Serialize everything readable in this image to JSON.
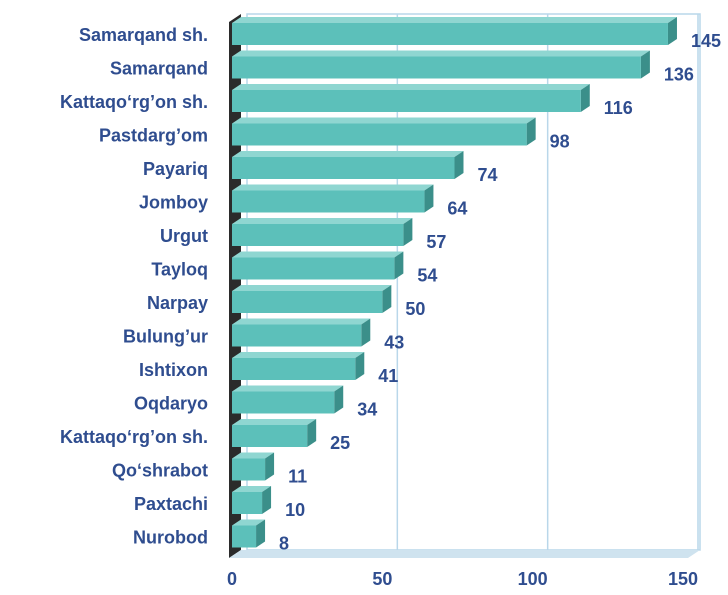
{
  "chart_data": {
    "type": "bar",
    "orientation": "horizontal",
    "categories": [
      "Samarqand sh.",
      "Samarqand",
      "Kattaqo‘rg’on sh.",
      "Pastdarg’om",
      "Payariq",
      "Jomboy",
      "Urgut",
      "Tayloq",
      "Narpay",
      "Bulung’ur",
      "Ishtixon",
      "Oqdaryo",
      "Kattaqo‘rg’on sh.",
      "Qo‘shrabot",
      "Paxtachi",
      "Nurobod"
    ],
    "values": [
      145,
      136,
      116,
      98,
      74,
      64,
      57,
      54,
      50,
      43,
      41,
      34,
      25,
      11,
      10,
      8
    ],
    "color": "#5cc0ba",
    "xlim": [
      0,
      150
    ],
    "xticks": [
      0,
      50,
      100,
      150
    ],
    "grid": true
  }
}
